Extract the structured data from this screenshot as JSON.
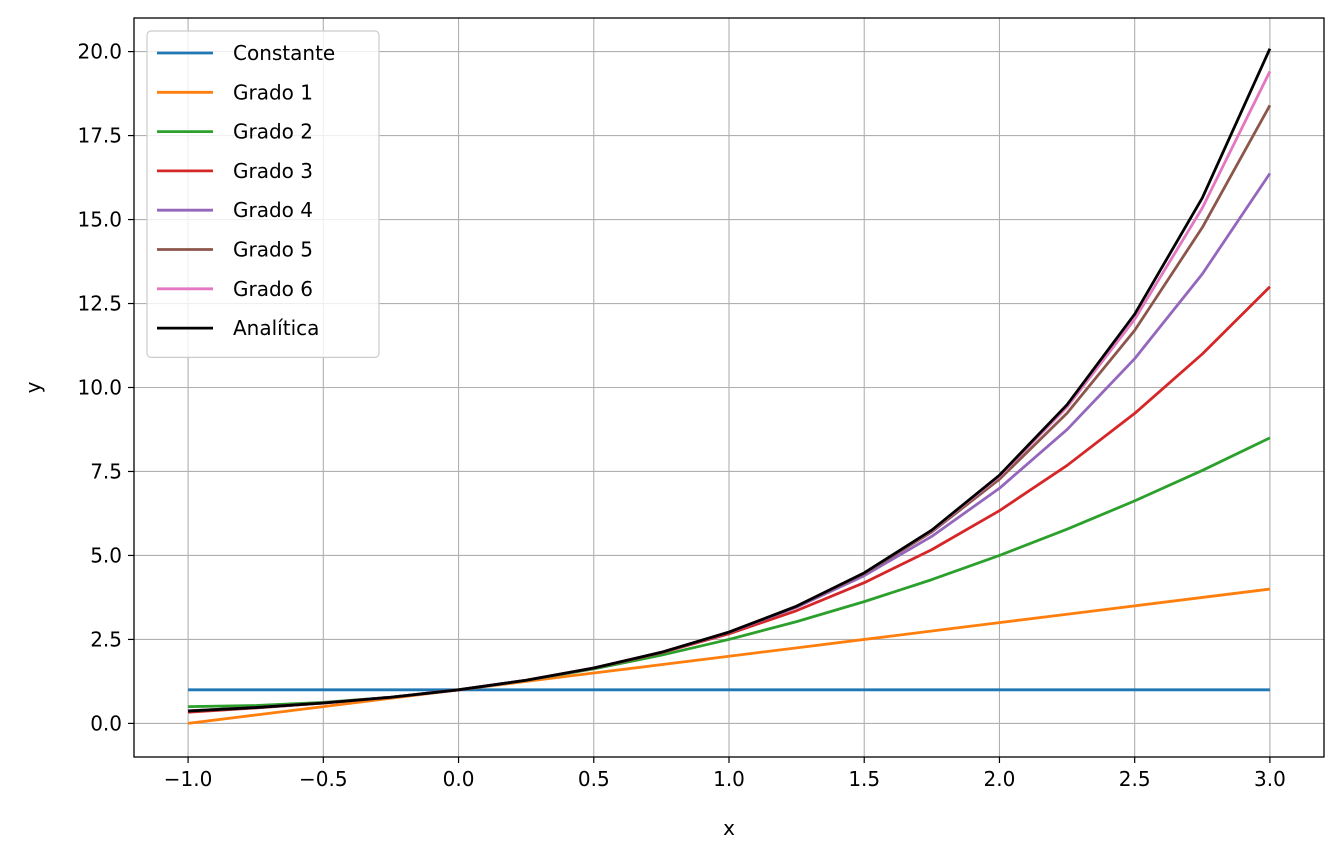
{
  "chart_data": {
    "type": "line",
    "title": "",
    "xlabel": "x",
    "ylabel": "y",
    "xlim": [
      -1.2,
      3.2
    ],
    "ylim": [
      -1.0,
      21.0
    ],
    "x_ticks": [
      -1.0,
      -0.5,
      0.0,
      0.5,
      1.0,
      1.5,
      2.0,
      2.5,
      3.0
    ],
    "x_tick_labels": [
      "−1.0",
      "−0.5",
      "0.0",
      "0.5",
      "1.0",
      "1.5",
      "2.0",
      "2.5",
      "3.0"
    ],
    "y_ticks": [
      0.0,
      2.5,
      5.0,
      7.5,
      10.0,
      12.5,
      15.0,
      17.5,
      20.0
    ],
    "y_tick_labels": [
      "0.0",
      "2.5",
      "5.0",
      "7.5",
      "10.0",
      "12.5",
      "15.0",
      "17.5",
      "20.0"
    ],
    "grid": true,
    "legend_position": "upper-left",
    "x": [
      -1.0,
      -0.75,
      -0.5,
      -0.25,
      0.0,
      0.25,
      0.5,
      0.75,
      1.0,
      1.25,
      1.5,
      1.75,
      2.0,
      2.25,
      2.5,
      2.75,
      3.0
    ],
    "series": [
      {
        "name": "Constante",
        "color": "#1f77b4",
        "values": [
          1,
          1,
          1,
          1,
          1,
          1,
          1,
          1,
          1,
          1,
          1,
          1,
          1,
          1,
          1,
          1,
          1
        ]
      },
      {
        "name": "Grado 1",
        "color": "#ff7f0e",
        "values": [
          0,
          0.25,
          0.5,
          0.75,
          1,
          1.25,
          1.5,
          1.75,
          2,
          2.25,
          2.5,
          2.75,
          3,
          3.25,
          3.5,
          3.75,
          4
        ]
      },
      {
        "name": "Grado 2",
        "color": "#2ca02c",
        "values": [
          0.5,
          0.531,
          0.625,
          0.781,
          1,
          1.281,
          1.625,
          2.031,
          2.5,
          3.031,
          3.625,
          4.281,
          5,
          5.781,
          6.625,
          7.531,
          8.5
        ]
      },
      {
        "name": "Grado 3",
        "color": "#d62728",
        "values": [
          0.333,
          0.461,
          0.604,
          0.779,
          1,
          1.284,
          1.646,
          2.102,
          2.667,
          3.357,
          4.188,
          5.174,
          6.333,
          7.68,
          9.229,
          10.997,
          13
        ]
      },
      {
        "name": "Grado 4",
        "color": "#9467bd",
        "values": [
          0.375,
          0.474,
          0.607,
          0.779,
          1,
          1.284,
          1.648,
          2.115,
          2.708,
          3.458,
          4.398,
          5.569,
          7,
          8.748,
          10.857,
          13.379,
          16.375
        ]
      },
      {
        "name": "Grado 5",
        "color": "#8c564b",
        "values": [
          0.367,
          0.472,
          0.607,
          0.779,
          1,
          1.284,
          1.649,
          2.117,
          2.717,
          3.484,
          4.461,
          5.701,
          7.267,
          9.236,
          11.7,
          14.763,
          18.4
        ]
      },
      {
        "name": "Grado 6",
        "color": "#e377c2",
        "values": [
          0.368,
          0.472,
          0.607,
          0.779,
          1,
          1.284,
          1.649,
          2.117,
          2.718,
          3.49,
          4.477,
          5.74,
          7.356,
          9.419,
          12.032,
          15.343,
          19.41
        ]
      },
      {
        "name": "Analítica",
        "color": "#000000",
        "values": [
          0.368,
          0.472,
          0.607,
          0.779,
          1,
          1.284,
          1.649,
          2.117,
          2.718,
          3.49,
          4.482,
          5.755,
          7.389,
          9.488,
          12.182,
          15.643,
          20.086
        ]
      }
    ]
  }
}
